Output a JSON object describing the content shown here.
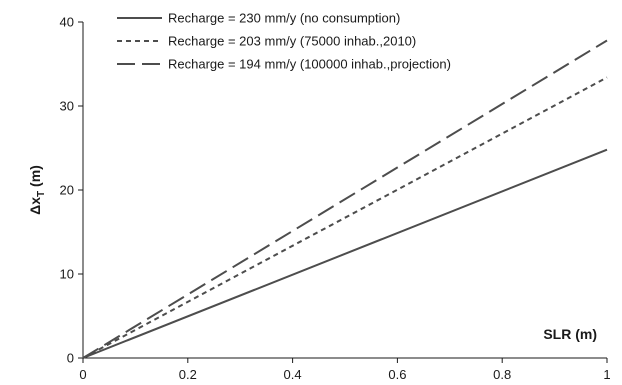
{
  "chart_data": {
    "type": "line",
    "title": "",
    "xlabel": "SLR (m)",
    "ylabel_main": "Δx",
    "ylabel_sub": "T",
    "ylabel_unit": " (m)",
    "xlim": [
      0,
      1
    ],
    "ylim": [
      0,
      40
    ],
    "xticks": [
      0,
      0.2,
      0.4,
      0.6,
      0.8,
      1
    ],
    "xtick_labels": [
      "0",
      "0.2",
      "0.4",
      "0.6",
      "0.8",
      "1"
    ],
    "yticks": [
      0,
      10,
      20,
      30,
      40
    ],
    "ytick_labels": [
      "0",
      "10",
      "20",
      "30",
      "40"
    ],
    "grid": false,
    "legend_position": "top-left",
    "series": [
      {
        "name": "Recharge = 230 mm/y (no consumption)",
        "style": "solid",
        "color": "#4d4d4d",
        "x": [
          0,
          1
        ],
        "y": [
          0,
          24.8
        ]
      },
      {
        "name": "Recharge = 203 mm/y (75000 inhab.,2010)",
        "style": "short-dash",
        "color": "#4d4d4d",
        "x": [
          0,
          1
        ],
        "y": [
          0,
          33.4
        ]
      },
      {
        "name": "Recharge = 194 mm/y (100000 inhab.,projection)",
        "style": "long-dash",
        "color": "#4d4d4d",
        "x": [
          0,
          1
        ],
        "y": [
          0,
          37.8
        ]
      }
    ]
  }
}
